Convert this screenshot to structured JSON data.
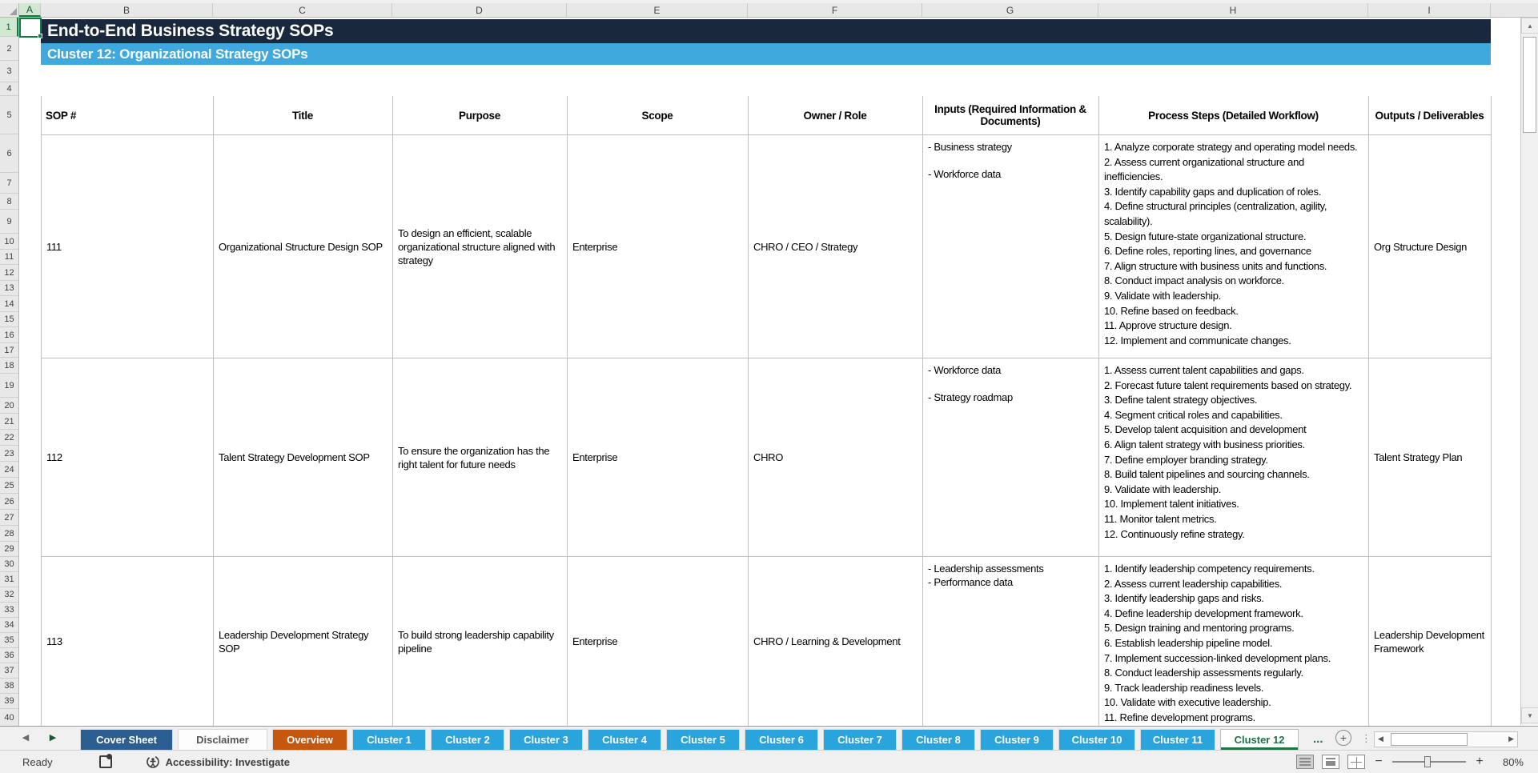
{
  "sheet": {
    "title": "End-to-End Business Strategy SOPs",
    "subtitle": "Cluster 12: Organizational Strategy SOPs",
    "selected_cell": "A1"
  },
  "grid": {
    "column_letters": [
      "A",
      "B",
      "C",
      "D",
      "E",
      "F",
      "G",
      "H",
      "I"
    ],
    "row_numbers": [
      1,
      2,
      3,
      4,
      5,
      6,
      7,
      8,
      9,
      10,
      11,
      12,
      13,
      14,
      15,
      16,
      17,
      18,
      19,
      20,
      21,
      22,
      23,
      24,
      25,
      26,
      27,
      28,
      29,
      30,
      31,
      32,
      33,
      34,
      35,
      36,
      37,
      38,
      39,
      40
    ]
  },
  "colors": {
    "title_bg": "#19283d",
    "subtitle_bg": "#3fa9de",
    "tab_cover": "#2d5e91",
    "tab_overview": "#c5570f",
    "tab_cluster": "#29a4dd",
    "active_tab_green": "#217346",
    "selection_green": "#107c41"
  },
  "table": {
    "headers": [
      "SOP #",
      "Title",
      "Purpose",
      "Scope",
      "Owner / Role",
      "Inputs (Required Information & Documents)",
      "Process Steps (Detailed Workflow)",
      "Outputs / Deliverables"
    ],
    "rows": [
      {
        "sop": "111",
        "title": "Organizational Structure Design SOP",
        "purpose": "To design an efficient, scalable organizational structure aligned with strategy",
        "scope": "Enterprise",
        "owner": "CHRO / CEO / Strategy",
        "inputs": [
          "- Business strategy",
          "- Workforce data"
        ],
        "inputs_blank_line_between": true,
        "steps": [
          "1. Analyze corporate strategy and operating model needs.",
          "2. Assess current organizational structure and inefficiencies.",
          "3. Identify capability gaps and duplication of roles.",
          "4. Define structural principles (centralization, agility, scalability).",
          "5. Design future-state organizational structure.",
          "6. Define roles, reporting lines, and governance",
          "7. Align structure with business units and functions.",
          "8. Conduct impact analysis on workforce.",
          "9. Validate with leadership.",
          "10. Refine based on feedback.",
          "11. Approve structure design.",
          "12. Implement and communicate changes."
        ],
        "output": "Org Structure Design"
      },
      {
        "sop": "112",
        "title": "Talent Strategy Development SOP",
        "purpose": "To ensure the organization has the right talent for future needs",
        "scope": "Enterprise",
        "owner": "CHRO",
        "inputs": [
          "- Workforce data",
          "- Strategy roadmap"
        ],
        "inputs_blank_line_between": true,
        "steps": [
          "1. Assess current talent capabilities and gaps.",
          "2. Forecast future talent requirements based on strategy.",
          "3. Define talent strategy objectives.",
          "4. Segment critical roles and capabilities.",
          "5. Develop talent acquisition and development",
          "6. Align talent strategy with business priorities.",
          "7. Define employer branding strategy.",
          "8. Build talent pipelines and sourcing channels.",
          "9. Validate with leadership.",
          "10. Implement talent initiatives.",
          "11. Monitor talent metrics.",
          "12. Continuously refine strategy."
        ],
        "output": "Talent Strategy Plan"
      },
      {
        "sop": "113",
        "title": "Leadership Development Strategy SOP",
        "purpose": "To build strong leadership capability pipeline",
        "scope": "Enterprise",
        "owner": "CHRO / Learning & Development",
        "inputs": [
          "- Leadership assessments",
          "- Performance data"
        ],
        "inputs_blank_line_between": false,
        "steps": [
          "1. Identify leadership competency requirements.",
          "2. Assess current leadership capabilities.",
          "3. Identify leadership gaps and risks.",
          "4. Define leadership development framework.",
          "5. Design training and mentoring programs.",
          "6. Establish leadership pipeline model.",
          "7. Implement succession-linked development plans.",
          "8. Conduct leadership assessments regularly.",
          "9. Track leadership readiness levels.",
          "10. Validate with executive leadership.",
          "11. Refine development programs."
        ],
        "output": "Leadership Development Framework"
      }
    ]
  },
  "tab_bar": {
    "tabs": [
      {
        "label": "Cover Sheet",
        "style": "cover"
      },
      {
        "label": "Disclaimer",
        "style": "plain"
      },
      {
        "label": "Overview",
        "style": "overview"
      },
      {
        "label": "Cluster 1",
        "style": "cluster"
      },
      {
        "label": "Cluster 2",
        "style": "cluster"
      },
      {
        "label": "Cluster 3",
        "style": "cluster"
      },
      {
        "label": "Cluster 4",
        "style": "cluster"
      },
      {
        "label": "Cluster 5",
        "style": "cluster"
      },
      {
        "label": "Cluster 6",
        "style": "cluster"
      },
      {
        "label": "Cluster 7",
        "style": "cluster"
      },
      {
        "label": "Cluster 8",
        "style": "cluster"
      },
      {
        "label": "Cluster 9",
        "style": "cluster"
      },
      {
        "label": "Cluster 10",
        "style": "cluster"
      },
      {
        "label": "Cluster 11",
        "style": "cluster"
      },
      {
        "label": "Cluster 12",
        "style": "active"
      }
    ],
    "more_tabs_ellipsis": "...",
    "add_sheet": "+"
  },
  "status_bar": {
    "ready": "Ready",
    "accessibility": "Accessibility: Investigate",
    "zoom_level": "80%"
  }
}
